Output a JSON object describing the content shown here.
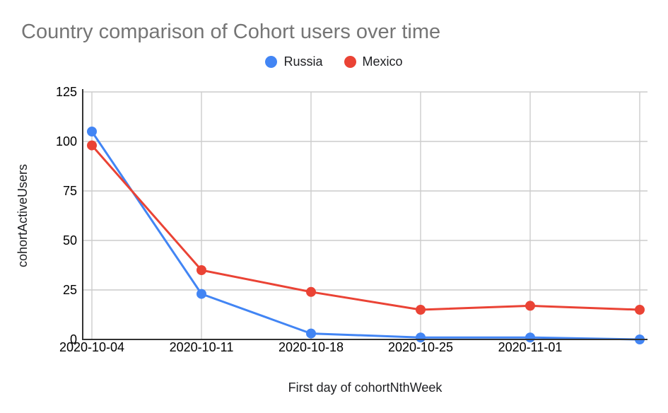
{
  "chart_data": {
    "type": "line",
    "title": "Country comparison of Cohort users over time",
    "xlabel": "First day of cohortNthWeek",
    "ylabel": "cohortActiveUsers",
    "x_tick_labels": [
      "2020-10-04",
      "2020-10-11",
      "2020-10-18",
      "2020-10-25",
      "2020-11-01",
      ""
    ],
    "yticks": [
      0,
      25,
      50,
      75,
      100,
      125
    ],
    "ylim": [
      0,
      125
    ],
    "grid": true,
    "legend_position": "top",
    "series": [
      {
        "name": "Russia",
        "color": "#4285F4",
        "values": [
          105,
          23,
          3,
          1,
          1,
          0
        ]
      },
      {
        "name": "Mexico",
        "color": "#EA4335",
        "values": [
          98,
          35,
          24,
          15,
          17,
          15
        ]
      }
    ],
    "colors": {
      "title_text": "#757575",
      "tick_text": "#000000",
      "axis_line": "#333333",
      "gridline": "#cccccc",
      "series_russia": "#4285F4",
      "series_mexico": "#EA4335"
    }
  }
}
